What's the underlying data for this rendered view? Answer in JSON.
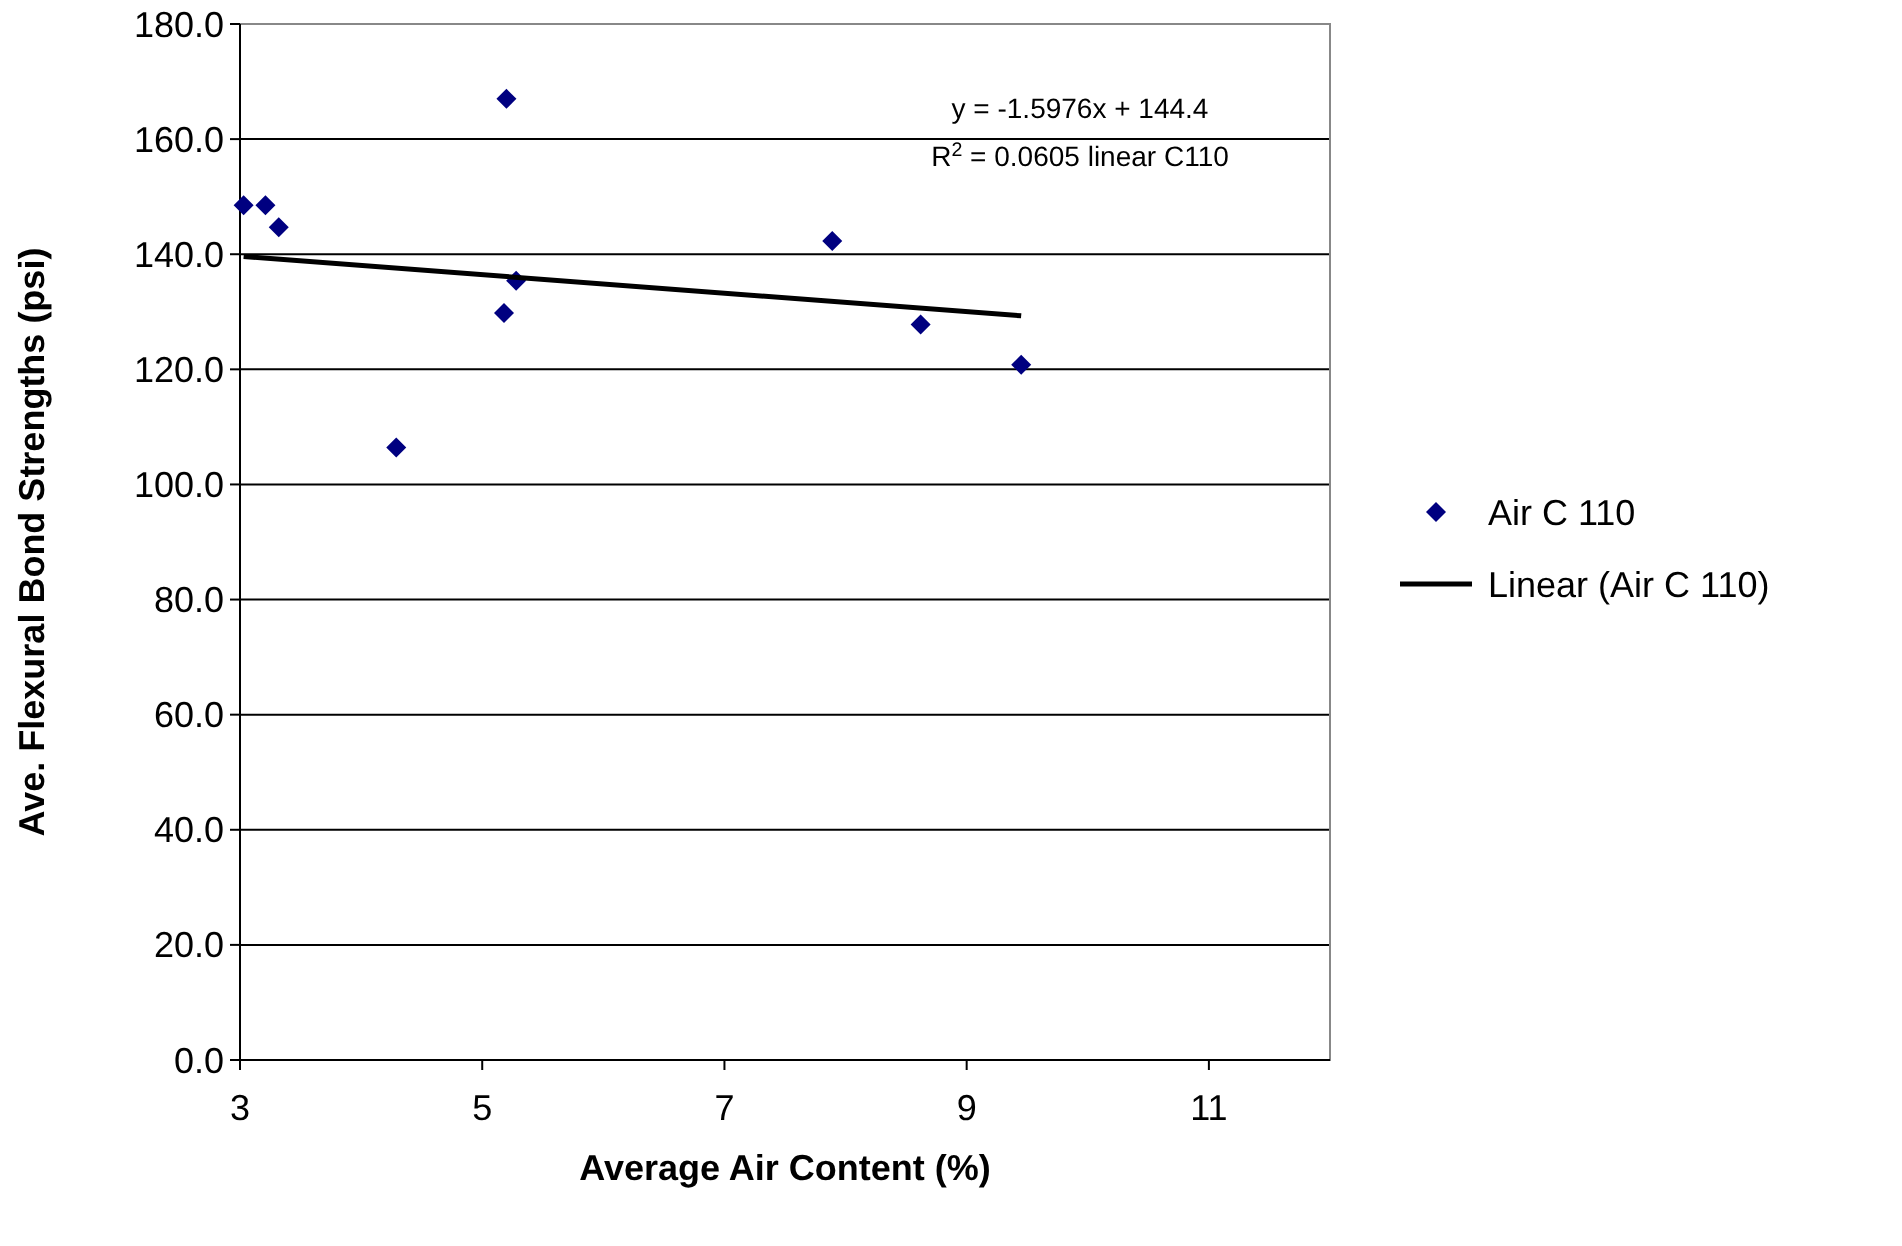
{
  "chart_data": {
    "type": "scatter",
    "xlabel": "Average Air Content (%)",
    "ylabel": "Ave. Flexural Bond Strengths (psi)",
    "series": [
      {
        "name": "Air C 110",
        "color": "#000080",
        "marker": "diamond",
        "x": [
          3.03,
          3.21,
          3.32,
          5.2,
          5.28,
          5.18,
          4.29,
          7.89,
          8.62,
          9.45
        ],
        "values": [
          148.5,
          148.5,
          144.7,
          167.0,
          135.4,
          129.8,
          106.4,
          142.3,
          127.8,
          120.8
        ]
      },
      {
        "name": "Linear (Air C 110)",
        "type": "line",
        "color": "#000000",
        "line_style": "solid",
        "x": [
          3.03,
          9.45
        ],
        "values": [
          139.6,
          129.3
        ]
      }
    ],
    "xlim": [
      3,
      12
    ],
    "xticks": [
      3,
      5,
      7,
      9,
      11
    ],
    "ylim": [
      0,
      180
    ],
    "yticks": [
      {
        "value": 0,
        "label": "0.0"
      },
      {
        "value": 20,
        "label": "20.0"
      },
      {
        "value": 40,
        "label": "40.0"
      },
      {
        "value": 60,
        "label": "60.0"
      },
      {
        "value": 80,
        "label": "80.0"
      },
      {
        "value": 100,
        "label": "100.0"
      },
      {
        "value": 120,
        "label": "120.0"
      },
      {
        "value": 140,
        "label": "140.0"
      },
      {
        "value": 160,
        "label": "160.0"
      },
      {
        "value": 180,
        "label": "180.0"
      }
    ],
    "grid": "y",
    "legend": "right",
    "annotations": [
      "y = -1.5976x + 144.4",
      "R$^{2}$ = 0.0605 linear C110"
    ]
  }
}
